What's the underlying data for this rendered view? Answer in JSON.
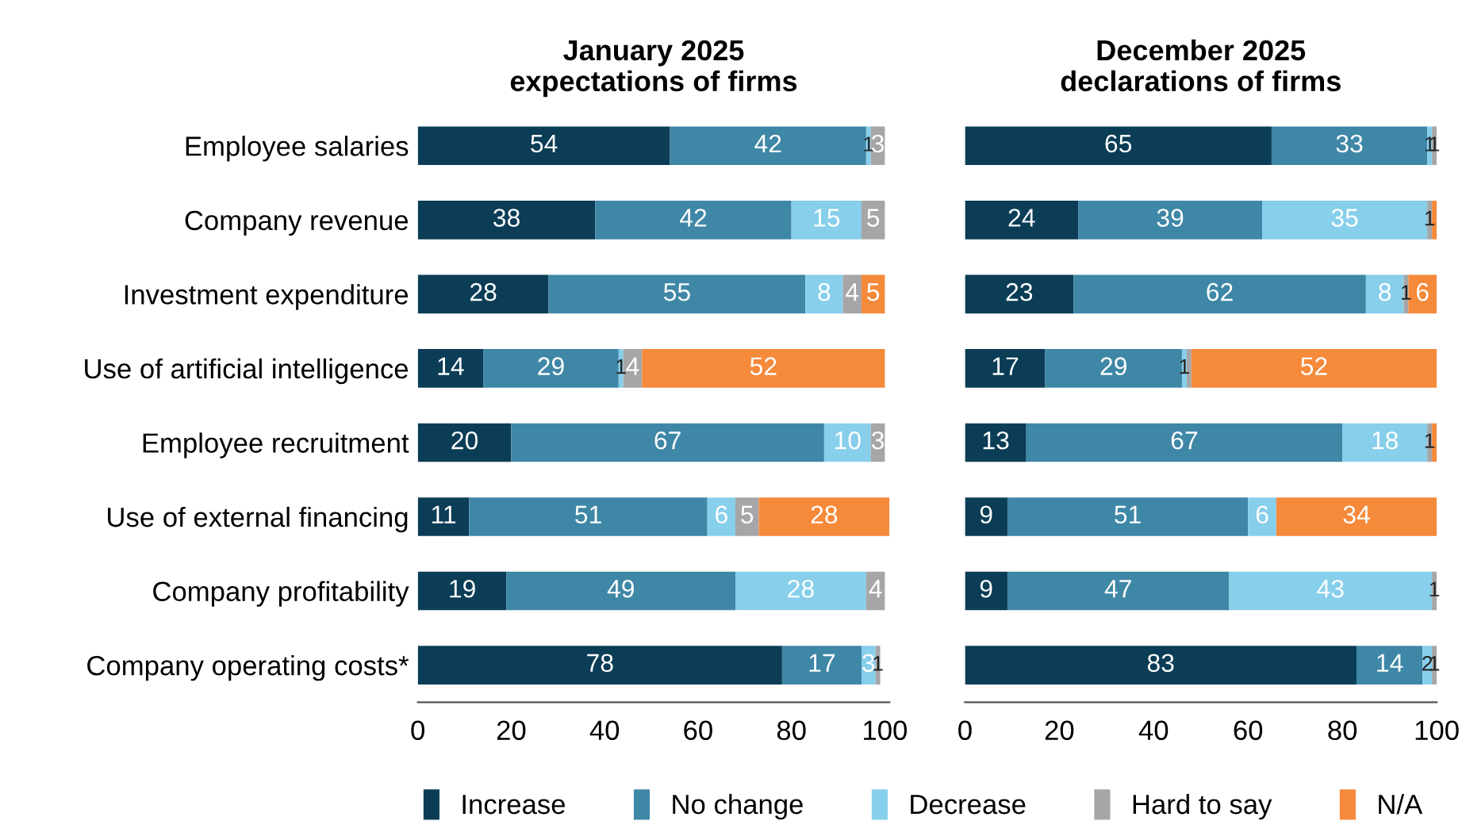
{
  "chart_data": [
    {
      "type": "bar",
      "orientation": "horizontal",
      "stacked": true,
      "title": "January 2025\nexpectations of firms",
      "categories": [
        "Employee salaries",
        "Company revenue",
        "Investment expenditure",
        "Use of artificial intelligence",
        "Employee recruitment",
        "Use of external financing",
        "Company profitability",
        "Company operating costs*"
      ],
      "series": [
        {
          "name": "Increase",
          "color": "#0b3d56",
          "values": [
            54,
            38,
            28,
            14,
            20,
            11,
            19,
            78
          ]
        },
        {
          "name": "No change",
          "color": "#3f87a6",
          "values": [
            42,
            42,
            55,
            29,
            67,
            51,
            49,
            17
          ]
        },
        {
          "name": "Decrease",
          "color": "#87cfeb",
          "values": [
            1,
            15,
            8,
            1,
            10,
            6,
            28,
            3
          ]
        },
        {
          "name": "Hard to say",
          "color": "#a6a6a8",
          "values": [
            3,
            5,
            4,
            4,
            3,
            5,
            4,
            1
          ]
        },
        {
          "name": "N/A",
          "color": "#f58a3b",
          "values": [
            null,
            null,
            5,
            52,
            null,
            28,
            null,
            null
          ]
        }
      ],
      "xlim": [
        0,
        101
      ],
      "xticks": [
        0,
        20,
        40,
        60,
        80,
        100
      ],
      "data_labels": true,
      "legend": "bottom"
    },
    {
      "type": "bar",
      "orientation": "horizontal",
      "stacked": true,
      "title": "December 2025\ndeclarations of firms",
      "categories": [
        null,
        null,
        null,
        null,
        null,
        null,
        null,
        null
      ],
      "series": [
        {
          "color": "#0b3d56",
          "values": [
            65,
            24,
            23,
            17,
            13,
            9,
            9,
            83
          ],
          "value_labels": [
            "65",
            "24",
            "23",
            "17",
            "13",
            "9",
            "9",
            "83"
          ]
        },
        {
          "color": "#3f87a6",
          "values": [
            33,
            39,
            62,
            29,
            67,
            51,
            47,
            14
          ],
          "value_labels": [
            "33",
            "39",
            "62",
            "29",
            "67",
            "51",
            "47",
            "14"
          ]
        },
        {
          "color": "#87cfeb",
          "values": [
            1,
            35,
            8,
            1,
            18,
            6,
            43,
            2
          ],
          "value_labels": [
            "1",
            "35",
            "8",
            "1",
            "18",
            "6",
            "43",
            "2"
          ]
        },
        {
          "color": "#a6a6a8",
          "values": [
            1,
            1,
            1,
            1,
            1,
            null,
            1,
            1
          ],
          "value_labels": [
            "1",
            "1",
            "1",
            null,
            "1",
            null,
            "1",
            "1"
          ]
        },
        {
          "color": "#f58a3b",
          "values": [
            null,
            1,
            6,
            52,
            1,
            34,
            null,
            null
          ],
          "value_labels": [
            null,
            null,
            "6",
            "52",
            null,
            "34",
            null,
            null
          ]
        }
      ],
      "xlim": [
        0,
        100
      ],
      "xticks": [
        0,
        20,
        40,
        60,
        80,
        100
      ],
      "tick_labels": "x"
    }
  ]
}
